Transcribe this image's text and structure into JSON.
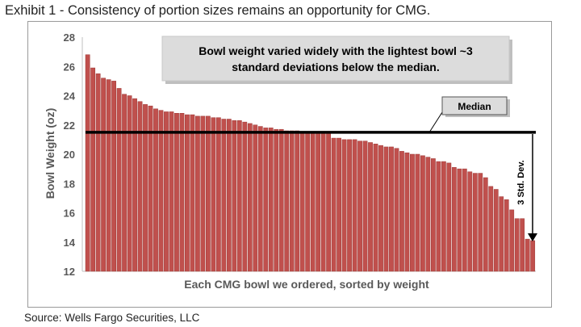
{
  "page": {
    "title": "Exhibit 1 - Consistency of portion sizes remains an opportunity for CMG.",
    "source": "Source: Wells Fargo Securities, LLC"
  },
  "colors": {
    "bar": "#c0504d",
    "bar_border": "#9e3a37",
    "median_line": "#000000",
    "callout_bg": "#d9d9d9"
  },
  "chart_data": {
    "type": "bar",
    "title": "",
    "xlabel": "Each CMG bowl we ordered, sorted by weight",
    "ylabel": "Bowl Weight (oz)",
    "ylim": [
      12,
      28
    ],
    "yticks": [
      12,
      14,
      16,
      18,
      20,
      22,
      24,
      26,
      28
    ],
    "grid": false,
    "values": [
      26.8,
      25.9,
      25.5,
      25.2,
      25.1,
      25.0,
      24.5,
      24.1,
      24.0,
      23.8,
      23.6,
      23.4,
      23.3,
      23.1,
      23.0,
      22.9,
      22.9,
      22.8,
      22.8,
      22.7,
      22.7,
      22.6,
      22.6,
      22.6,
      22.5,
      22.5,
      22.4,
      22.4,
      22.3,
      22.3,
      22.2,
      22.1,
      22.0,
      21.9,
      21.8,
      21.8,
      21.7,
      21.7,
      21.6,
      21.6,
      21.6,
      21.5,
      21.5,
      21.5,
      21.5,
      21.5,
      21.5,
      21.1,
      21.1,
      21.0,
      21.0,
      21.0,
      20.9,
      20.9,
      20.8,
      20.7,
      20.6,
      20.5,
      20.5,
      20.4,
      20.2,
      20.1,
      20.0,
      20.0,
      19.9,
      19.8,
      19.7,
      19.5,
      19.5,
      19.4,
      19.1,
      19.0,
      19.0,
      18.8,
      18.7,
      18.7,
      18.4,
      17.8,
      17.6,
      17.1,
      16.9,
      16.2,
      15.6,
      15.6,
      14.2,
      14.1
    ],
    "median": 21.5,
    "annotations": {
      "callout": [
        "Bowl weight varied widely with the lightest bowl ~3",
        "standard deviations below the median."
      ],
      "median_label": "Median",
      "std_label": "3 Std. Dev."
    }
  }
}
